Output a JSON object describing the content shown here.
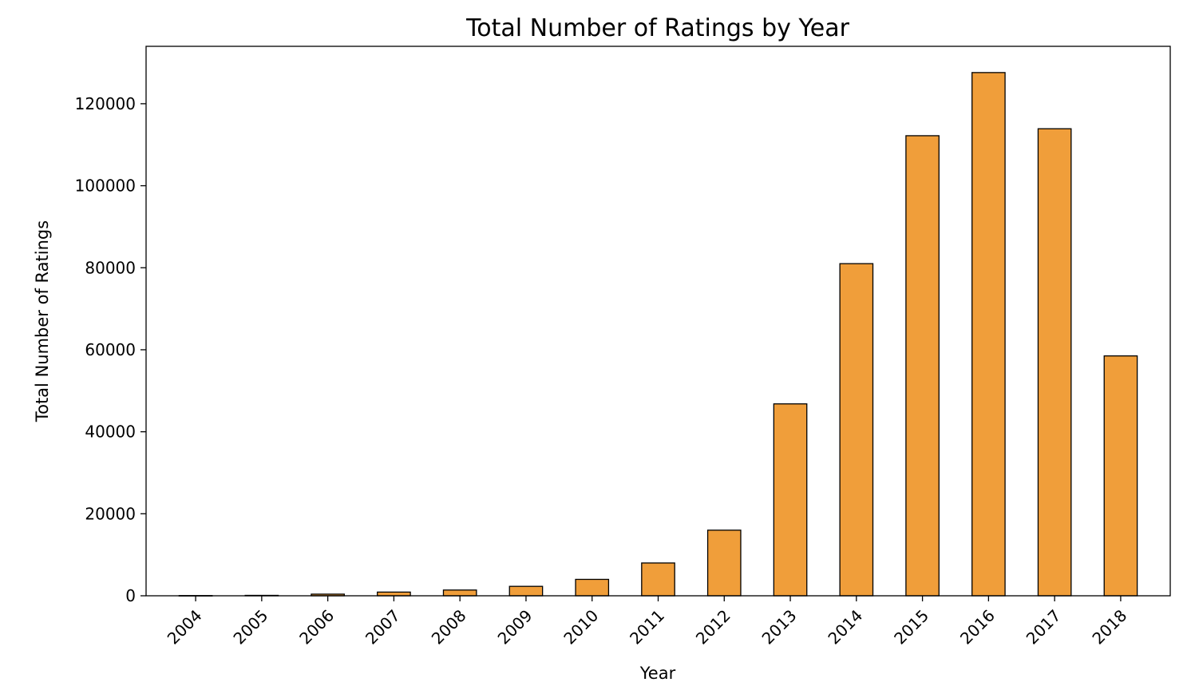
{
  "chart_data": {
    "type": "bar",
    "title": "Total Number of Ratings by Year",
    "xlabel": "Year",
    "ylabel": "Total Number of Ratings",
    "categories": [
      "2004",
      "2005",
      "2006",
      "2007",
      "2008",
      "2009",
      "2010",
      "2011",
      "2012",
      "2013",
      "2014",
      "2015",
      "2016",
      "2017",
      "2018"
    ],
    "values": [
      50,
      100,
      400,
      900,
      1400,
      2300,
      4000,
      8000,
      16000,
      46800,
      81000,
      112200,
      127600,
      113900,
      58500
    ],
    "ylim": [
      0,
      134000
    ],
    "yticks": [
      0,
      20000,
      40000,
      60000,
      80000,
      100000,
      120000
    ],
    "ytick_labels": [
      "0",
      "20000",
      "40000",
      "60000",
      "80000",
      "100000",
      "120000"
    ],
    "bar_color": "#f09e3a",
    "bar_edge_color": "#000000",
    "grid": false,
    "legend": false
  }
}
